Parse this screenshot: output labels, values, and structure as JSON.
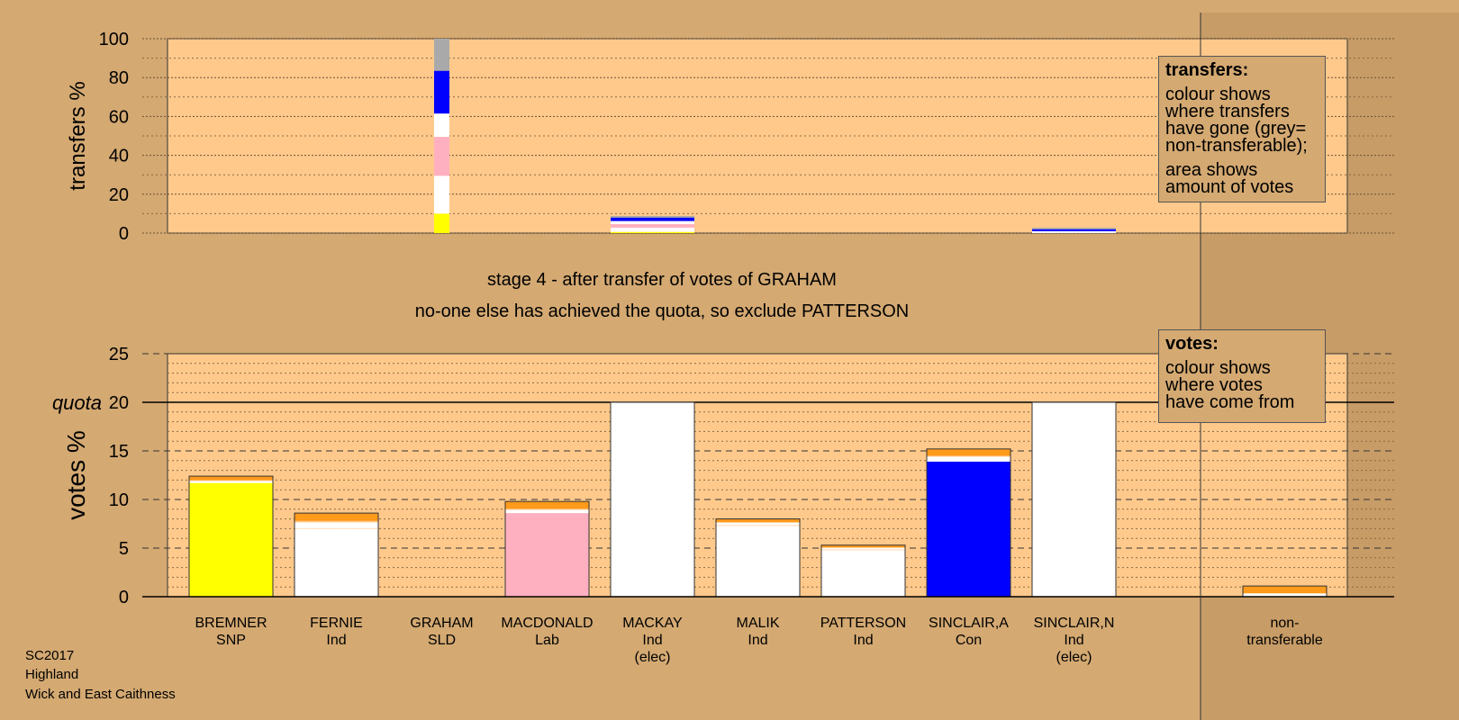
{
  "footer": {
    "line1": "SC2017",
    "line2": "Highland",
    "line3": "Wick and East Caithness"
  },
  "captions": {
    "stage": "stage 4 - after transfer of votes of GRAHAM",
    "exclude": "no-one else has achieved the quota, so exclude PATTERSON"
  },
  "legend_transfers": {
    "title": "transfers:",
    "lines": [
      "colour shows",
      "where transfers",
      "have gone (grey=",
      "non-transferable);"
    ],
    "lines2": [
      "area shows",
      "amount of votes"
    ]
  },
  "legend_votes": {
    "title": "votes:",
    "lines": [
      "colour shows",
      "where votes",
      "have come from"
    ]
  },
  "colors": {
    "background": "#d4a972",
    "plot": "#ffc98c",
    "SNP": "#ffff00",
    "Ind": "#ffffff",
    "Lab": "#ffb0c0",
    "Con": "#0000ff",
    "transfer": "#ff9a1a",
    "nontransferable": "#a9a9a9"
  },
  "chart_data": [
    {
      "type": "bar",
      "stacked": true,
      "ylabel": "transfers %",
      "ylim": [
        0,
        100
      ],
      "yticks": [
        0,
        20,
        40,
        60,
        80,
        100
      ],
      "grid": true,
      "bars": [
        {
          "index": 2,
          "width": "narrow",
          "segments": [
            {
              "color": "#ffff00",
              "value": 10
            },
            {
              "color": "#ffffff",
              "value": 19.5
            },
            {
              "color": "#ffb0c0",
              "value": 20
            },
            {
              "color": "#ffffff",
              "value": 12
            },
            {
              "color": "#0000ff",
              "value": 22
            },
            {
              "color": "#a9a9a9",
              "value": 16.5
            }
          ]
        },
        {
          "index": 4,
          "width": "wide",
          "segments": [
            {
              "color": "#ffff00",
              "value": 0.6
            },
            {
              "color": "#ffffff",
              "value": 2.2
            },
            {
              "color": "#ffb0c0",
              "value": 1.8
            },
            {
              "color": "#ffffff",
              "value": 1.6
            },
            {
              "color": "#0000ff",
              "value": 1.8
            },
            {
              "color": "#a9a9a9",
              "value": 0.8
            }
          ]
        },
        {
          "index": 8,
          "width": "wide",
          "segments": [
            {
              "color": "#ffffff",
              "value": 1.0
            },
            {
              "color": "#0000ff",
              "value": 1.0
            },
            {
              "color": "#a9a9a9",
              "value": 0.7
            }
          ]
        }
      ]
    },
    {
      "type": "bar",
      "stacked": true,
      "ylabel": "votes %",
      "ylim": [
        0,
        25
      ],
      "yticks": [
        0,
        5,
        10,
        15,
        20,
        25
      ],
      "quota": 20,
      "quota_label": "quota",
      "grid": true,
      "categories": [
        {
          "name": "BREMNER",
          "party": "SNP",
          "note": ""
        },
        {
          "name": "FERNIE",
          "party": "Ind",
          "note": ""
        },
        {
          "name": "GRAHAM",
          "party": "SLD",
          "note": ""
        },
        {
          "name": "MACDONALD",
          "party": "Lab",
          "note": ""
        },
        {
          "name": "MACKAY",
          "party": "Ind",
          "note": "(elec)"
        },
        {
          "name": "MALIK",
          "party": "Ind",
          "note": ""
        },
        {
          "name": "PATTERSON",
          "party": "Ind",
          "note": ""
        },
        {
          "name": "SINCLAIR,A",
          "party": "Con",
          "note": ""
        },
        {
          "name": "SINCLAIR,N",
          "party": "Ind",
          "note": "(elec)"
        }
      ],
      "nontransferable_label_1": "non-",
      "nontransferable_label_2": "transferable",
      "bars": [
        {
          "index": 0,
          "segments": [
            {
              "color": "#ffff00",
              "value": 11.7
            },
            {
              "color": "#ffffff",
              "value": 0.2
            },
            {
              "color": "#ffc98c",
              "value": 0.1
            },
            {
              "color": "#ff9a1a",
              "value": 0.4
            }
          ]
        },
        {
          "index": 1,
          "segments": [
            {
              "color": "#ffffff",
              "value": 7.0
            },
            {
              "color": "#ffc98c",
              "value": 0.05
            },
            {
              "color": "#ffffff",
              "value": 0.6
            },
            {
              "color": "#ffc98c",
              "value": 0.15
            },
            {
              "color": "#ff9a1a",
              "value": 0.8
            }
          ]
        },
        {
          "index": 2,
          "segments": []
        },
        {
          "index": 3,
          "segments": [
            {
              "color": "#ffb0c0",
              "value": 8.6
            },
            {
              "color": "#ffffff",
              "value": 0.35
            },
            {
              "color": "#ffc98c",
              "value": 0.1
            },
            {
              "color": "#ff9a1a",
              "value": 0.75
            }
          ]
        },
        {
          "index": 4,
          "segments": [
            {
              "color": "#ffffff",
              "value": 20.0
            }
          ]
        },
        {
          "index": 5,
          "segments": [
            {
              "color": "#ffffff",
              "value": 7.3
            },
            {
              "color": "#ffc98c",
              "value": 0.05
            },
            {
              "color": "#ffffff",
              "value": 0.3
            },
            {
              "color": "#ff9a1a",
              "value": 0.35
            }
          ]
        },
        {
          "index": 6,
          "segments": [
            {
              "color": "#ffffff",
              "value": 4.8
            },
            {
              "color": "#ffc98c",
              "value": 0.05
            },
            {
              "color": "#ffffff",
              "value": 0.2
            },
            {
              "color": "#ff9a1a",
              "value": 0.25
            }
          ]
        },
        {
          "index": 7,
          "segments": [
            {
              "color": "#0000ff",
              "value": 13.9
            },
            {
              "color": "#ffffff",
              "value": 0.5
            },
            {
              "color": "#ffc98c",
              "value": 0.1
            },
            {
              "color": "#ff9a1a",
              "value": 0.7
            }
          ]
        },
        {
          "index": 8,
          "segments": [
            {
              "color": "#ffffff",
              "value": 20.0
            }
          ]
        },
        {
          "index": 10,
          "segments": [
            {
              "color": "#ffffff",
              "value": 0.35
            },
            {
              "color": "#ff9a1a",
              "value": 0.75
            }
          ]
        }
      ]
    }
  ]
}
